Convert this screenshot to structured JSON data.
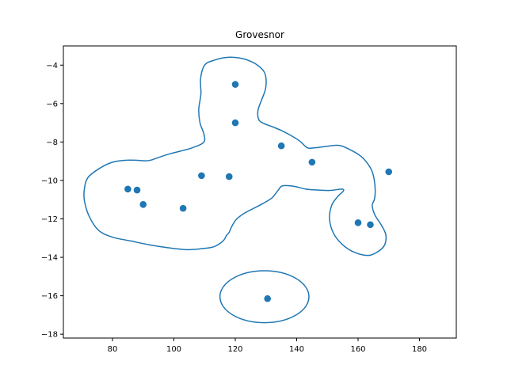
{
  "chart_data": {
    "type": "scatter",
    "title": "Grovesnor",
    "xlabel": "",
    "ylabel": "",
    "xlim": [
      64,
      192
    ],
    "ylim": [
      -18.2,
      -3.0
    ],
    "xticks": [
      80,
      100,
      120,
      140,
      160,
      180
    ],
    "yticks": [
      -4,
      -6,
      -8,
      -10,
      -12,
      -14,
      -16,
      -18
    ],
    "grid": false,
    "point_color": "#1f77b4",
    "outline_color": "#1f77b4",
    "points": [
      {
        "x": 120,
        "y": -5.0
      },
      {
        "x": 120,
        "y": -7.0
      },
      {
        "x": 135,
        "y": -8.2
      },
      {
        "x": 145,
        "y": -9.05
      },
      {
        "x": 170,
        "y": -9.55
      },
      {
        "x": 109,
        "y": -9.75
      },
      {
        "x": 118,
        "y": -9.8
      },
      {
        "x": 85,
        "y": -10.45
      },
      {
        "x": 88,
        "y": -10.5
      },
      {
        "x": 90,
        "y": -11.25
      },
      {
        "x": 103,
        "y": -11.45
      },
      {
        "x": 160,
        "y": -12.2
      },
      {
        "x": 164,
        "y": -12.3
      },
      {
        "x": 130.5,
        "y": -16.15
      }
    ],
    "outlines": [
      {
        "closed": true,
        "points": [
          [
            70.8,
            -10.5
          ],
          [
            72,
            -9.85
          ],
          [
            76,
            -9.35
          ],
          [
            80,
            -9.05
          ],
          [
            84,
            -8.95
          ],
          [
            88,
            -8.95
          ],
          [
            91,
            -8.98
          ],
          [
            93,
            -8.92
          ],
          [
            96,
            -8.75
          ],
          [
            99,
            -8.6
          ],
          [
            102,
            -8.48
          ],
          [
            106,
            -8.3
          ],
          [
            109.7,
            -8.02
          ],
          [
            109.8,
            -7.6
          ],
          [
            108.5,
            -7.0
          ],
          [
            108.1,
            -6.3
          ],
          [
            108.8,
            -5.5
          ],
          [
            108.7,
            -4.7
          ],
          [
            110,
            -4.0
          ],
          [
            113,
            -3.75
          ],
          [
            117,
            -3.6
          ],
          [
            121,
            -3.62
          ],
          [
            125,
            -3.8
          ],
          [
            128,
            -4.1
          ],
          [
            129.8,
            -4.5
          ],
          [
            129.9,
            -5.2
          ],
          [
            128.6,
            -5.8
          ],
          [
            127.4,
            -6.35
          ],
          [
            127.7,
            -6.85
          ],
          [
            129.5,
            -7.05
          ],
          [
            132,
            -7.2
          ],
          [
            135,
            -7.4
          ],
          [
            138,
            -7.65
          ],
          [
            141,
            -7.95
          ],
          [
            143.5,
            -8.3
          ],
          [
            146,
            -8.3
          ],
          [
            150,
            -8.22
          ],
          [
            154,
            -8.18
          ],
          [
            158,
            -8.45
          ],
          [
            161,
            -8.75
          ],
          [
            163,
            -9.1
          ],
          [
            164.5,
            -9.5
          ],
          [
            165.3,
            -10.0
          ],
          [
            165.6,
            -10.6
          ],
          [
            165.3,
            -11.0
          ],
          [
            164.6,
            -11.3
          ],
          [
            165.5,
            -11.8
          ],
          [
            167.5,
            -12.3
          ],
          [
            169,
            -12.8
          ],
          [
            168.8,
            -13.3
          ],
          [
            167,
            -13.65
          ],
          [
            163.5,
            -13.9
          ],
          [
            159,
            -13.75
          ],
          [
            155,
            -13.35
          ],
          [
            152,
            -12.75
          ],
          [
            150.7,
            -12.0
          ],
          [
            151.4,
            -11.3
          ],
          [
            153.3,
            -10.85
          ],
          [
            155.2,
            -10.55
          ],
          [
            154.7,
            -10.45
          ],
          [
            151,
            -10.52
          ],
          [
            147,
            -10.5
          ],
          [
            143,
            -10.45
          ],
          [
            139,
            -10.3
          ],
          [
            135.4,
            -10.28
          ],
          [
            134,
            -10.5
          ],
          [
            132,
            -10.9
          ],
          [
            129,
            -11.2
          ],
          [
            126,
            -11.45
          ],
          [
            123,
            -11.7
          ],
          [
            120.5,
            -12.0
          ],
          [
            119,
            -12.35
          ],
          [
            118,
            -12.7
          ],
          [
            117.2,
            -12.85
          ],
          [
            116,
            -13.15
          ],
          [
            113,
            -13.45
          ],
          [
            109,
            -13.55
          ],
          [
            104,
            -13.6
          ],
          [
            98,
            -13.5
          ],
          [
            92,
            -13.35
          ],
          [
            86,
            -13.15
          ],
          [
            80,
            -12.95
          ],
          [
            75.5,
            -12.6
          ],
          [
            72.5,
            -11.9
          ],
          [
            70.9,
            -11.1
          ]
        ]
      }
    ]
  }
}
